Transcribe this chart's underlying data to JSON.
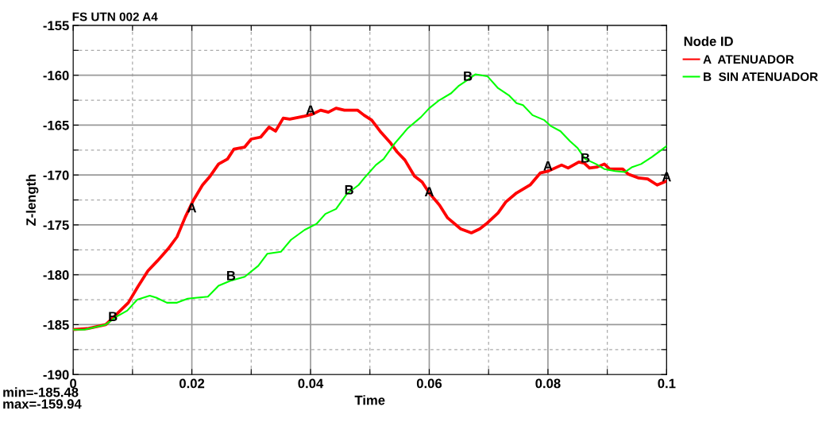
{
  "chart_data": {
    "type": "line",
    "title": "FS UTN 002 A4",
    "xlabel": "Time",
    "ylabel": "Z-length",
    "legend_title": "Node ID",
    "legend": "right",
    "grid": true,
    "marker": "none",
    "line_style": "solid",
    "xlim": [
      0,
      0.1
    ],
    "ylim": [
      -190,
      -155
    ],
    "xticks": [
      0,
      {
        "value": 0.01,
        "label": null
      },
      0.02,
      {
        "value": 0.03,
        "label": null
      },
      0.04,
      {
        "value": 0.05,
        "label": null
      },
      0.06,
      {
        "value": 0.07,
        "label": null
      },
      0.08,
      {
        "value": 0.09,
        "label": null
      },
      0.1
    ],
    "yticks": [
      -190,
      {
        "value": -187.5,
        "label": null
      },
      -185,
      {
        "value": -182.5,
        "label": null
      },
      -180,
      {
        "value": -177.5,
        "label": null
      },
      -175,
      {
        "value": -172.5,
        "label": null
      },
      -170,
      {
        "value": -167.5,
        "label": null
      },
      -165,
      {
        "value": -162.5,
        "label": null
      },
      -160,
      {
        "value": -157.5,
        "label": null
      },
      -155
    ],
    "series": [
      {
        "name": "A  ATENUADOR",
        "color": "#ff0000",
        "x": [
          0,
          0.0024,
          0.0055,
          0.0069,
          0.0093,
          0.0109,
          0.0126,
          0.0142,
          0.016,
          0.0175,
          0.0189,
          0.0202,
          0.0218,
          0.0231,
          0.0245,
          0.026,
          0.0271,
          0.0289,
          0.03,
          0.0316,
          0.033,
          0.0341,
          0.0354,
          0.0365,
          0.039,
          0.0403,
          0.0417,
          0.043,
          0.0443,
          0.0457,
          0.0479,
          0.049,
          0.0503,
          0.0517,
          0.0535,
          0.0546,
          0.0559,
          0.0575,
          0.0588,
          0.06,
          0.0617,
          0.0631,
          0.0653,
          0.0671,
          0.0685,
          0.0698,
          0.0716,
          0.0729,
          0.0747,
          0.077,
          0.0787,
          0.0801,
          0.0823,
          0.0834,
          0.0852,
          0.0861,
          0.087,
          0.0883,
          0.0895,
          0.0904,
          0.0926,
          0.0935,
          0.0953,
          0.0968,
          0.0984,
          0.1
        ],
        "values": [
          -185.5,
          -185.4,
          -185.0,
          -184.2,
          -182.8,
          -181.2,
          -179.6,
          -178.6,
          -177.4,
          -176.2,
          -174.2,
          -172.6,
          -171.0,
          -170.1,
          -168.9,
          -168.4,
          -167.4,
          -167.2,
          -166.4,
          -166.2,
          -165.2,
          -165.6,
          -164.3,
          -164.4,
          -164.1,
          -163.9,
          -163.5,
          -163.7,
          -163.3,
          -163.5,
          -163.5,
          -164.0,
          -164.5,
          -165.6,
          -166.8,
          -167.7,
          -168.5,
          -170.1,
          -170.7,
          -171.8,
          -173.0,
          -174.3,
          -175.4,
          -175.8,
          -175.4,
          -174.8,
          -173.8,
          -172.7,
          -171.8,
          -171.0,
          -169.8,
          -169.6,
          -169.0,
          -169.3,
          -168.7,
          -168.8,
          -169.3,
          -169.2,
          -168.9,
          -169.4,
          -169.4,
          -169.9,
          -170.3,
          -170.4,
          -171.0,
          -170.6
        ]
      },
      {
        "name": "B  SIN ATENUADOR",
        "color": "#00ff00",
        "x": [
          0,
          0.0019,
          0.0055,
          0.0073,
          0.0091,
          0.0108,
          0.0129,
          0.014,
          0.0158,
          0.0175,
          0.0193,
          0.0209,
          0.0227,
          0.0245,
          0.0265,
          0.0289,
          0.0312,
          0.0327,
          0.035,
          0.0367,
          0.039,
          0.041,
          0.0425,
          0.0443,
          0.0461,
          0.0481,
          0.0492,
          0.051,
          0.0523,
          0.0541,
          0.0564,
          0.0586,
          0.06,
          0.0617,
          0.0637,
          0.0649,
          0.0664,
          0.0678,
          0.0698,
          0.0716,
          0.0734,
          0.0747,
          0.0758,
          0.0774,
          0.0794,
          0.0805,
          0.0821,
          0.0837,
          0.085,
          0.0863,
          0.0881,
          0.0895,
          0.0913,
          0.093,
          0.0942,
          0.0957,
          0.0975,
          0.1
        ],
        "values": [
          -185.5,
          -185.5,
          -185.0,
          -184.2,
          -183.6,
          -182.5,
          -182.1,
          -182.3,
          -182.8,
          -182.8,
          -182.4,
          -182.3,
          -182.2,
          -181.1,
          -180.6,
          -180.2,
          -179.1,
          -177.9,
          -177.7,
          -176.5,
          -175.5,
          -174.9,
          -173.9,
          -173.4,
          -171.9,
          -171.0,
          -170.2,
          -169.0,
          -168.4,
          -166.9,
          -165.3,
          -164.2,
          -163.3,
          -162.5,
          -161.8,
          -161.1,
          -160.5,
          -159.9,
          -160.1,
          -161.3,
          -162.0,
          -162.8,
          -163.0,
          -164.0,
          -164.5,
          -165.1,
          -165.6,
          -166.6,
          -167.3,
          -168.4,
          -168.9,
          -169.4,
          -169.6,
          -169.7,
          -169.2,
          -168.9,
          -168.2,
          -167.1
        ]
      }
    ],
    "annotations": [
      {
        "text": "A",
        "x": 0.02,
        "y": -173.4
      },
      {
        "text": "A",
        "x": 0.04,
        "y": -163.6
      },
      {
        "text": "A",
        "x": 0.06,
        "y": -171.8
      },
      {
        "text": "A",
        "x": 0.08,
        "y": -169.2
      },
      {
        "text": "A",
        "x": 0.1,
        "y": -170.3
      },
      {
        "text": "B",
        "x": 0.0067,
        "y": -184.3
      },
      {
        "text": "B",
        "x": 0.0266,
        "y": -180.2
      },
      {
        "text": "B",
        "x": 0.0465,
        "y": -171.6
      },
      {
        "text": "B",
        "x": 0.0665,
        "y": -160.2
      },
      {
        "text": "B",
        "x": 0.0863,
        "y": -168.4
      },
      "min=-185.48",
      "max=-159.94"
    ]
  }
}
